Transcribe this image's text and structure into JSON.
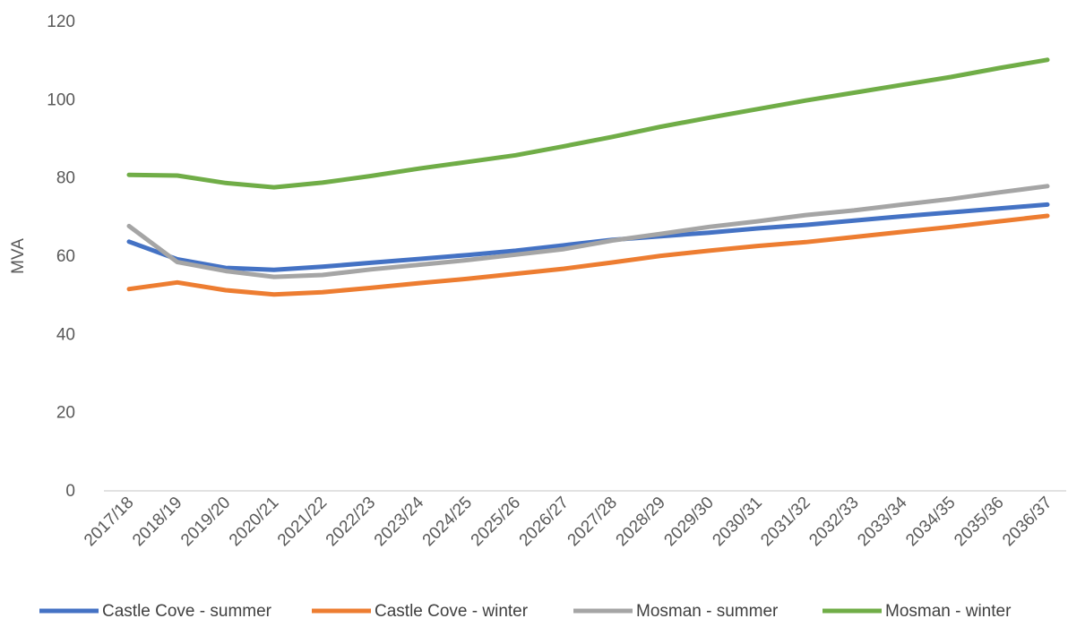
{
  "chart_data": {
    "type": "line",
    "title": "",
    "xlabel": "",
    "ylabel": "MVA",
    "ylim": [
      0,
      120
    ],
    "yticks": [
      0,
      20,
      40,
      60,
      80,
      100,
      120
    ],
    "grid": false,
    "legend_position": "bottom",
    "categories": [
      "2017/18",
      "2018/19",
      "2019/20",
      "2020/21",
      "2021/22",
      "2022/23",
      "2023/24",
      "2024/25",
      "2025/26",
      "2026/27",
      "2027/28",
      "2028/29",
      "2029/30",
      "2030/31",
      "2031/32",
      "2032/33",
      "2033/34",
      "2034/35",
      "2035/36",
      "2036/37"
    ],
    "series": [
      {
        "name": "Castle Cove - summer",
        "color": "#4472C4",
        "values": [
          63.7,
          59.2,
          57.0,
          56.5,
          57.3,
          58.3,
          59.3,
          60.3,
          61.4,
          62.8,
          64.2,
          65.1,
          66.0,
          67.1,
          68.0,
          69.1,
          70.2,
          71.2,
          72.2,
          73.2
        ]
      },
      {
        "name": "Castle Cove - winter",
        "color": "#ED7D31",
        "values": [
          51.6,
          53.3,
          51.3,
          50.2,
          50.8,
          51.9,
          53.1,
          54.2,
          55.5,
          56.8,
          58.4,
          60.1,
          61.4,
          62.6,
          63.6,
          64.9,
          66.2,
          67.5,
          68.9,
          70.3
        ]
      },
      {
        "name": "Mosman - summer",
        "color": "#A5A5A5",
        "values": [
          67.7,
          58.5,
          56.2,
          54.7,
          55.2,
          56.6,
          57.8,
          59.0,
          60.4,
          61.8,
          64.0,
          65.7,
          67.5,
          68.9,
          70.5,
          71.7,
          73.2,
          74.6,
          76.3,
          77.9
        ]
      },
      {
        "name": "Mosman - winter",
        "color": "#70AD47",
        "values": [
          80.8,
          80.6,
          78.7,
          77.6,
          78.8,
          80.5,
          82.4,
          84.1,
          85.8,
          88.1,
          90.5,
          93.1,
          95.4,
          97.6,
          99.8,
          101.8,
          103.8,
          105.8,
          108.1,
          110.2
        ]
      }
    ]
  }
}
